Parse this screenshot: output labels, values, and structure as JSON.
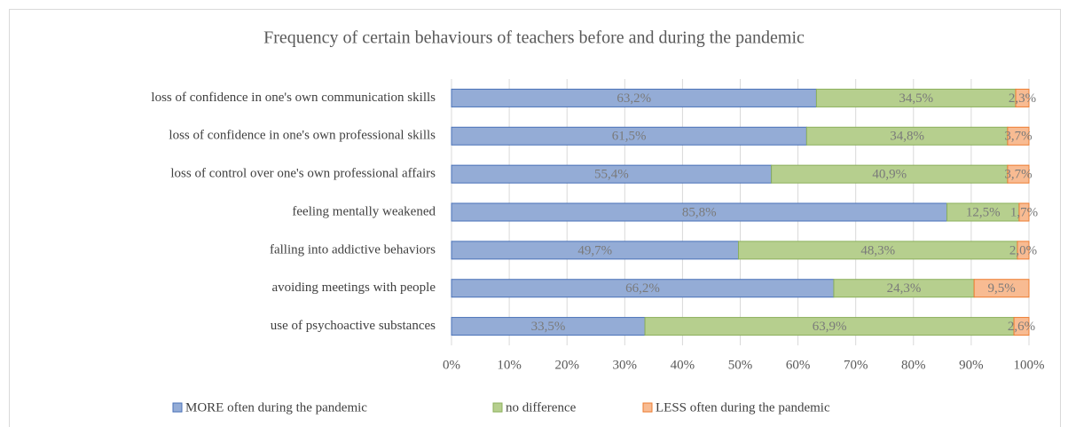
{
  "chart_data": {
    "type": "stacked_barh",
    "title": "Frequency of certain behaviours of teachers before and during the pandemic",
    "categories": [
      "loss of confidence in one's own communication skills",
      "loss of confidence in one's own professional skills",
      "loss of control over one's own professional affairs",
      "feeling mentally weakened",
      "falling into addictive behaviors",
      "avoiding meetings with people",
      "use of psychoactive substances"
    ],
    "series": [
      {
        "name": "MORE often during the pandemic",
        "color": "#94acd6",
        "edge": "#4a72b8",
        "values": [
          63.2,
          61.5,
          55.4,
          85.8,
          49.7,
          66.2,
          33.5
        ],
        "value_labels": [
          "63,2%",
          "61,5%",
          "55,4%",
          "85,8%",
          "49,7%",
          "66,2%",
          "33,5%"
        ]
      },
      {
        "name": "no difference",
        "color": "#b6cf8e",
        "edge": "#8cb05c",
        "values": [
          34.5,
          34.8,
          40.9,
          12.5,
          48.3,
          24.3,
          63.9
        ],
        "value_labels": [
          "34,5%",
          "34,8%",
          "40,9%",
          "12,5%",
          "48,3%",
          "24,3%",
          "63,9%"
        ]
      },
      {
        "name": "LESS often during the pandemic",
        "color": "#f8bb92",
        "edge": "#ed7d31",
        "values": [
          2.3,
          3.7,
          3.7,
          1.7,
          2.0,
          9.5,
          2.6
        ],
        "value_labels": [
          "2,3%",
          "3,7%",
          "3,7%",
          "1,7%",
          "2,0%",
          "9,5%",
          "2,6%"
        ]
      }
    ],
    "xlim": [
      0,
      100
    ],
    "xticks": [
      {
        "value": 0,
        "label": "0%"
      },
      {
        "value": 10,
        "label": "10%"
      },
      {
        "value": 20,
        "label": "20%"
      },
      {
        "value": 30,
        "label": "30%"
      },
      {
        "value": 40,
        "label": "40%"
      },
      {
        "value": 50,
        "label": "50%"
      },
      {
        "value": 60,
        "label": "60%"
      },
      {
        "value": 70,
        "label": "70%"
      },
      {
        "value": 80,
        "label": "80%"
      },
      {
        "value": 90,
        "label": "90%"
      },
      {
        "value": 100,
        "label": "100%"
      }
    ],
    "grid": true,
    "legend": "bottom"
  }
}
